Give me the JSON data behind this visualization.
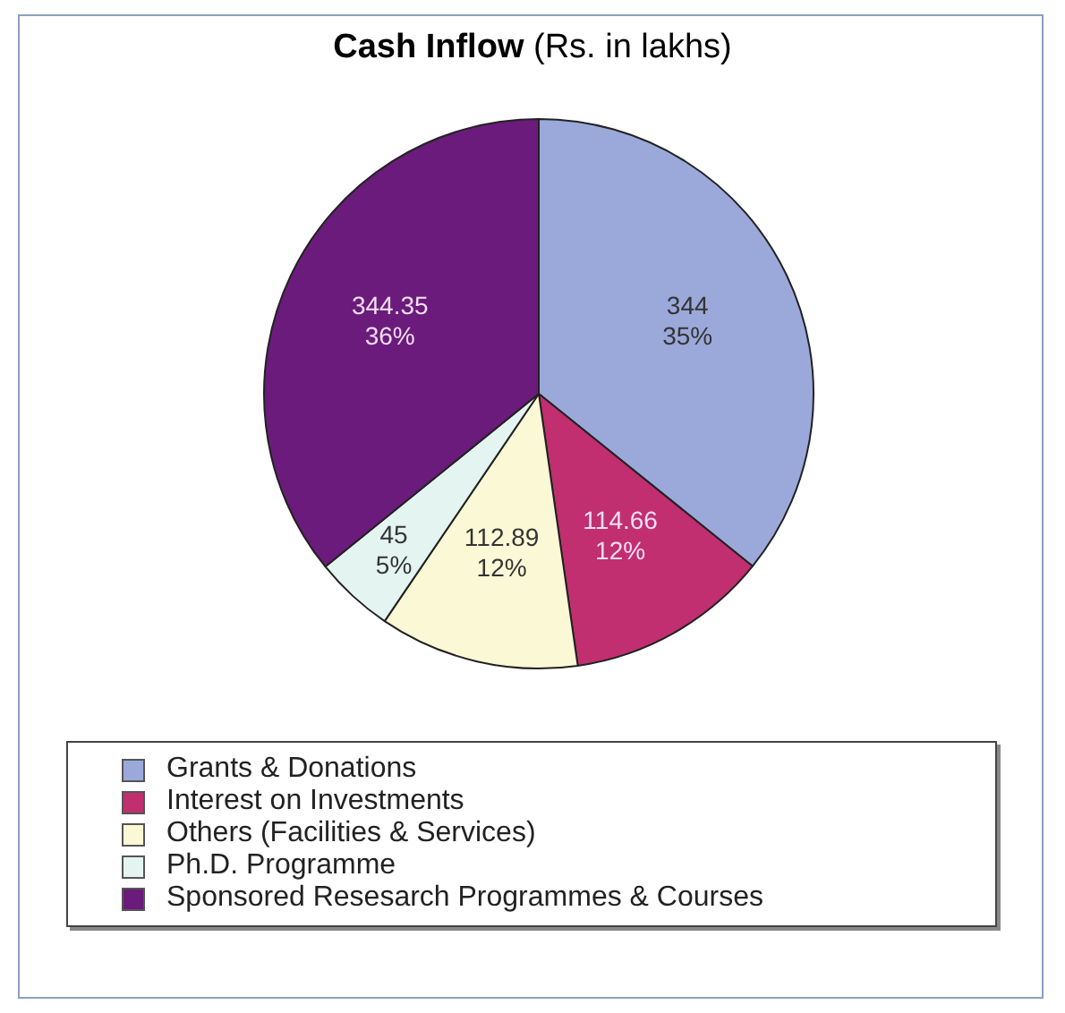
{
  "chart_data": {
    "type": "pie",
    "title": "Cash Inflow",
    "subtitle": "(Rs. in lakhs)",
    "categories": [
      "Grants & Donations",
      "Interest on Investments",
      "Others (Facilities & Services)",
      "Ph.D. Programme",
      "Sponsored Resesarch Programmes & Courses"
    ],
    "values": [
      344,
      114.66,
      112.89,
      45,
      344.35
    ],
    "colors": [
      "#9ba9da",
      "#c12f70",
      "#fbf8d6",
      "#e3f4f1",
      "#6b1b7b"
    ],
    "value_labels": [
      "344\n35%",
      "114.66\n12%",
      "112.89\n12%",
      "45\n5%",
      "344.35\n36%"
    ],
    "legend": "bottom"
  }
}
